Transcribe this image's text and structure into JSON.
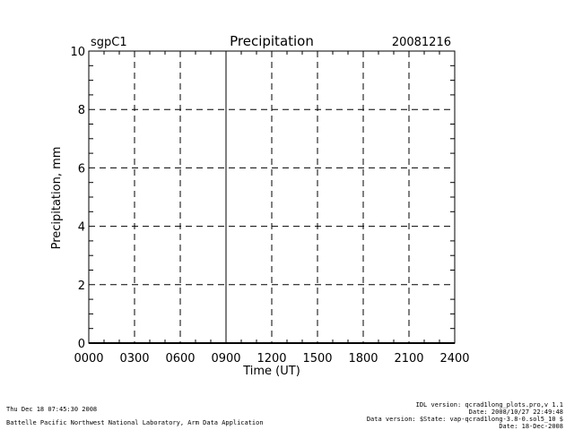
{
  "chart_data": {
    "type": "line",
    "title": "Precipitation",
    "site": "sgpC1",
    "date": "20081216",
    "xlabel": "Time (UT)",
    "ylabel": "Precipitation, mm",
    "xlim": [
      0,
      2400
    ],
    "ylim": [
      0,
      10
    ],
    "x_ticks": [
      "0000",
      "0300",
      "0600",
      "0900",
      "1200",
      "1500",
      "1800",
      "2100",
      "2400"
    ],
    "y_ticks": [
      "0",
      "2",
      "4",
      "6",
      "8",
      "10"
    ],
    "grid": true,
    "series": [
      {
        "x": [
          0,
          2400
        ],
        "values": [
          0,
          0
        ]
      }
    ]
  },
  "footer": {
    "timestamp": "Thu Dec 18 07:45:30 2008",
    "lab": "Battelle Pacific Northwest National Laboratory, Arm Data Application",
    "idl_version": "IDL version: qcrad1long_plots.pro,v 1.1",
    "idl_date": "Date: 2008/10/27 22:49:48",
    "data_version": "Data version: $State: vap-qcrad1long-3.8-0.sol5_10 $",
    "data_date": "Date: 18-Dec-2008"
  }
}
